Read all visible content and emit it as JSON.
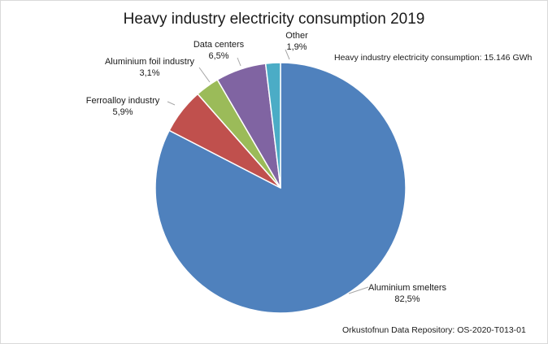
{
  "chart_data": {
    "type": "pie",
    "title": "Heavy industry electricity consumption 2019",
    "subtitle": "Heavy industry electricity consumption: 15.146 GWh",
    "source": "Orkustofnun Data Repository: OS-2020-T013-01",
    "slices": [
      {
        "name": "Aluminium smelters",
        "label": "82,5%",
        "value": 82.5,
        "color": "#4f81bd"
      },
      {
        "name": "Ferroalloy industry",
        "label": "5,9%",
        "value": 5.9,
        "color": "#c0504d"
      },
      {
        "name": "Aluminium foil industry",
        "label": "3,1%",
        "value": 3.1,
        "color": "#9bbb59"
      },
      {
        "name": "Data centers",
        "label": "6,5%",
        "value": 6.5,
        "color": "#8064a2"
      },
      {
        "name": "Other",
        "label": "1,9%",
        "value": 1.9,
        "color": "#4bacc6"
      }
    ],
    "legend": "none"
  }
}
